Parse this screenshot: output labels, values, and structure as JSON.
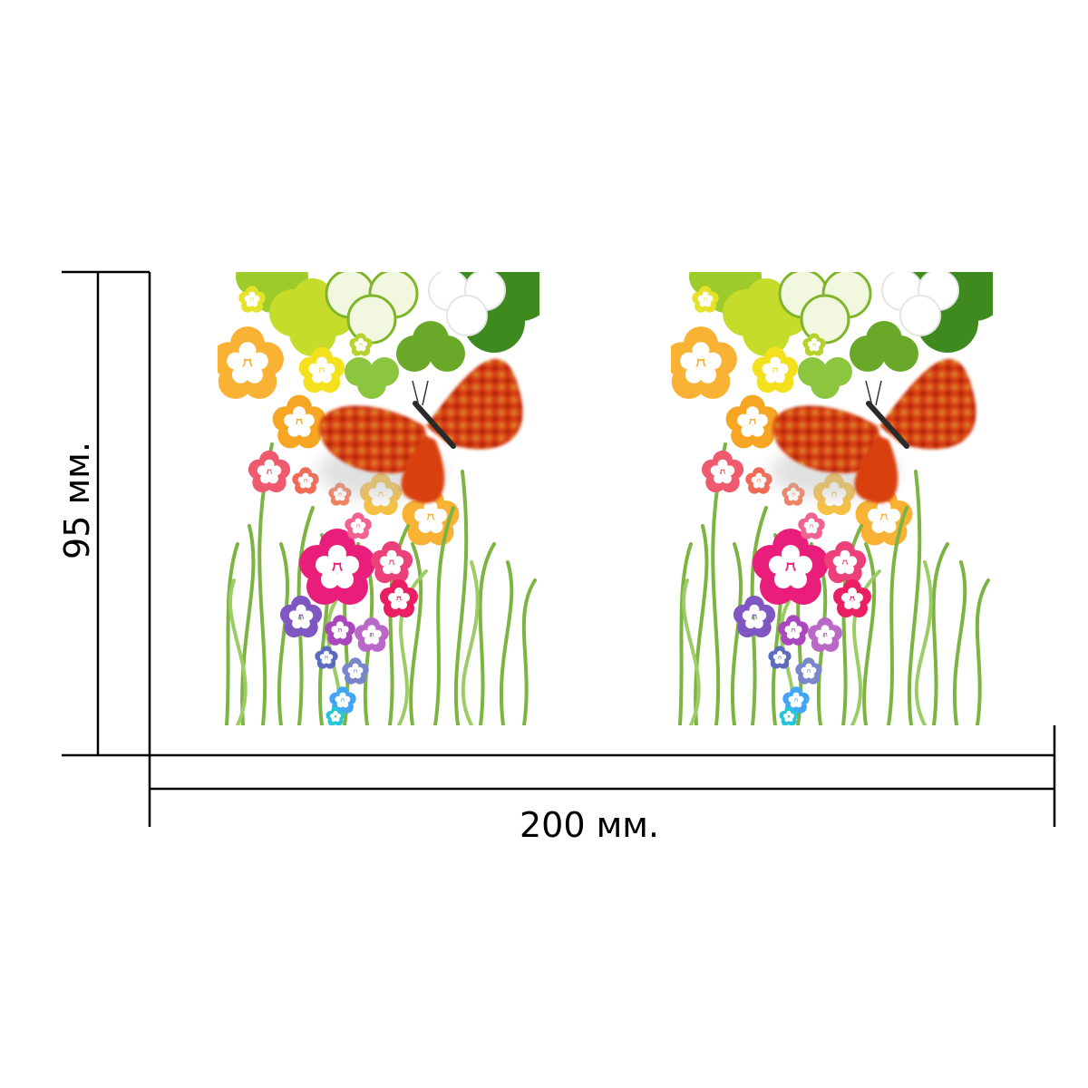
{
  "dimensions": {
    "width_label": "200 мм.",
    "height_label": "95 мм."
  },
  "artwork": {
    "panels": [
      {
        "subject": "butterfly-with-flowers-and-grass"
      },
      {
        "subject": "butterfly-with-flowers-and-grass"
      }
    ]
  },
  "colors": {
    "line": "#000000",
    "grass": "#7cb342",
    "leaf_dark": "#3f8a1f",
    "leaf_light": "#b9d52a",
    "butterfly": "#e8410c",
    "pink": "#e91e7a",
    "orange": "#f7a21b",
    "yellow": "#f4e11a",
    "purple": "#7e57c2",
    "blue": "#42a5f5"
  }
}
